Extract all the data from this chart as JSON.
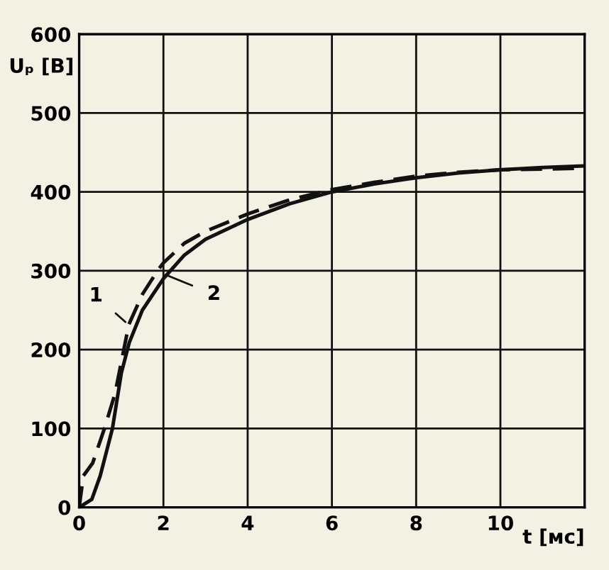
{
  "chart_data": {
    "type": "line",
    "xlabel": "t [мс]",
    "ylabel": "Uₚ [В]",
    "xlim": [
      0,
      12
    ],
    "xticks": [
      0,
      2,
      4,
      6,
      8,
      10,
      {
        "value": 12,
        "label": null
      }
    ],
    "ylim": [
      0,
      600
    ],
    "yticks": [
      0,
      100,
      200,
      300,
      400,
      500,
      600
    ],
    "grid": true,
    "series": [
      {
        "color": "#111111",
        "line_style": "dashed",
        "x": [
          0,
          0.1,
          0.32,
          0.6,
          0.85,
          1.18,
          1.5,
          1.86,
          2.0,
          2.5,
          3,
          4,
          5,
          6,
          7,
          8,
          9,
          10,
          11,
          12
        ],
        "values": [
          0,
          40,
          56,
          100,
          144,
          232,
          270,
          300,
          310,
          335,
          350,
          372,
          390,
          403,
          412,
          420,
          425,
          428,
          429,
          430
        ]
      },
      {
        "color": "#111111",
        "line_style": "solid",
        "x": [
          0,
          0.3,
          0.5,
          0.79,
          1.0,
          1.19,
          1.5,
          2.0,
          2.5,
          3,
          4,
          5,
          6,
          7,
          8,
          9,
          10,
          11,
          12
        ],
        "values": [
          0,
          10,
          40,
          100,
          170,
          209,
          250,
          290,
          320,
          340,
          365,
          385,
          400,
          410,
          418,
          424,
          428,
          431,
          433
        ]
      }
    ],
    "annotations": [
      {
        "text": "1",
        "x": 1.1,
        "y": 235
      },
      {
        "text": "2",
        "x": 2.05,
        "y": 295
      }
    ]
  }
}
